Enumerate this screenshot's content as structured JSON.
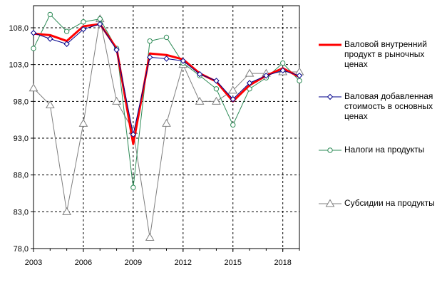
{
  "chart_data": {
    "type": "line",
    "title": "",
    "xlabel": "",
    "ylabel": "",
    "x": [
      2003,
      2004,
      2005,
      2006,
      2007,
      2008,
      2009,
      2010,
      2011,
      2012,
      2013,
      2014,
      2015,
      2016,
      2017,
      2018,
      2019
    ],
    "x_tick_labels": [
      "2003",
      "2006",
      "2009",
      "2012",
      "2015",
      "2018"
    ],
    "y_tick_labels": [
      "78,0",
      "83,0",
      "88,0",
      "93,0",
      "98,0",
      "103,0",
      "108,0"
    ],
    "ylim": [
      78,
      111
    ],
    "grid": true,
    "legend": "right",
    "series": [
      {
        "name": "Валовой внутренний продукт в рыночных ценах",
        "color": "#ff0000",
        "marker": "none",
        "values": [
          107.2,
          107.0,
          106.2,
          108.2,
          108.5,
          105.2,
          92.2,
          104.5,
          104.3,
          103.7,
          101.8,
          100.7,
          98.0,
          100.2,
          101.5,
          102.5,
          101.3
        ]
      },
      {
        "name": "Валовая добавленная стоимость  в основных ценах",
        "color": "#00008b",
        "marker": "diamond",
        "values": [
          107.3,
          106.5,
          105.8,
          107.8,
          108.5,
          105.0,
          93.5,
          104.0,
          103.8,
          103.5,
          101.7,
          100.8,
          98.3,
          100.5,
          101.5,
          102.2,
          101.5
        ]
      },
      {
        "name": "Налоги на продукты",
        "color": "#2e8b57",
        "marker": "circle",
        "values": [
          105.2,
          109.8,
          107.5,
          108.8,
          109.2,
          105.2,
          86.3,
          106.2,
          106.7,
          103.2,
          101.5,
          99.7,
          94.8,
          99.7,
          101.2,
          103.2,
          100.8
        ]
      },
      {
        "name": "Субсидии на продукты",
        "color": "#7f7f7f",
        "marker": "triangle",
        "values": [
          99.8,
          97.5,
          83.0,
          95.0,
          109.2,
          98.0,
          94.0,
          79.5,
          95.0,
          103.0,
          98.0,
          98.0,
          99.5,
          101.8,
          101.8,
          102.0,
          102.0
        ]
      }
    ]
  }
}
